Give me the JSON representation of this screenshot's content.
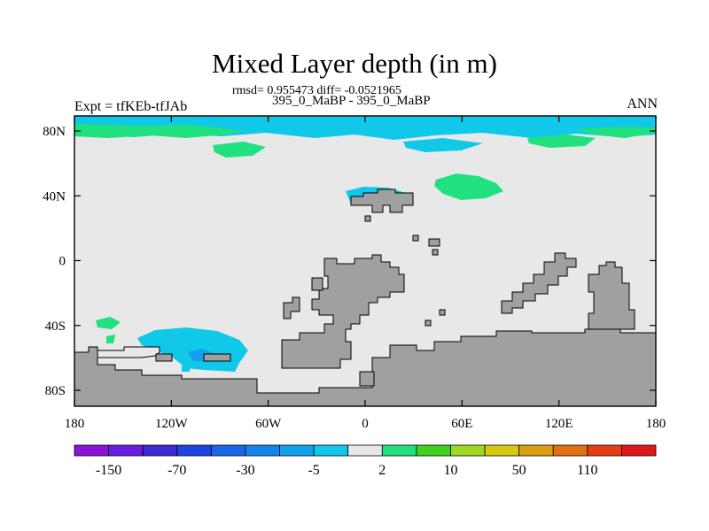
{
  "title": "Mixed Layer depth (in m)",
  "stats": "rmsd= 0.955473 diff= -0.0521965",
  "subtitle": "395_0_MaBP - 395_0_MaBP",
  "left_label": "Expt = tfKEb-tfJAb",
  "right_label": "ANN",
  "colors": {
    "background": "#e8e8e8",
    "land": "#a0a0a0",
    "positive_small": "#20e080",
    "negative_small": "#10c8e8",
    "negative_mid": "#10a0ec"
  },
  "map": {
    "x_ticks": [
      "180",
      "120W",
      "60W",
      "0",
      "60E",
      "120E",
      "180"
    ],
    "y_ticks": [
      "80N",
      "40N",
      "0",
      "40S",
      "80S"
    ]
  },
  "colorbar": {
    "colors": [
      "#8c14d8",
      "#6a1ce0",
      "#3c2cd8",
      "#2044e0",
      "#1c64e8",
      "#1484ec",
      "#10a0ec",
      "#10c8e8",
      "#e8e8e8",
      "#20e080",
      "#40d020",
      "#a0d820",
      "#d8c810",
      "#d8a010",
      "#e07010",
      "#e83c14",
      "#e01818"
    ],
    "labels": [
      "-150",
      "-70",
      "-30",
      "-5",
      "2",
      "10",
      "50",
      "110"
    ]
  }
}
